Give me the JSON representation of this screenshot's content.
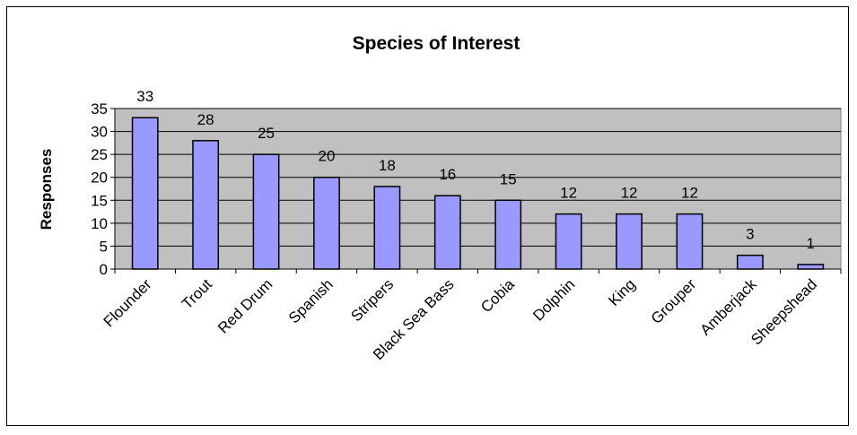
{
  "chart_data": {
    "type": "bar",
    "title": "Species of Interest",
    "xlabel": "",
    "ylabel": "Responses",
    "categories": [
      "Flounder",
      "Trout",
      "Red Drum",
      "Spanish",
      "Stripers",
      "Black Sea Bass",
      "Cobia",
      "Dolphin",
      "King",
      "Grouper",
      "Amberjack",
      "Sheepshead"
    ],
    "values": [
      33,
      28,
      25,
      20,
      18,
      16,
      15,
      12,
      12,
      12,
      3,
      1
    ],
    "ylim": [
      0,
      35
    ],
    "yticks": [
      0,
      5,
      10,
      15,
      20,
      25,
      30,
      35
    ],
    "grid": true,
    "legend": "none",
    "data_labels": true,
    "colors": {
      "bar_fill": "#9999ff",
      "bar_stroke": "#000000",
      "plot_background": "#c0c0c0",
      "gridline": "#000000"
    }
  }
}
